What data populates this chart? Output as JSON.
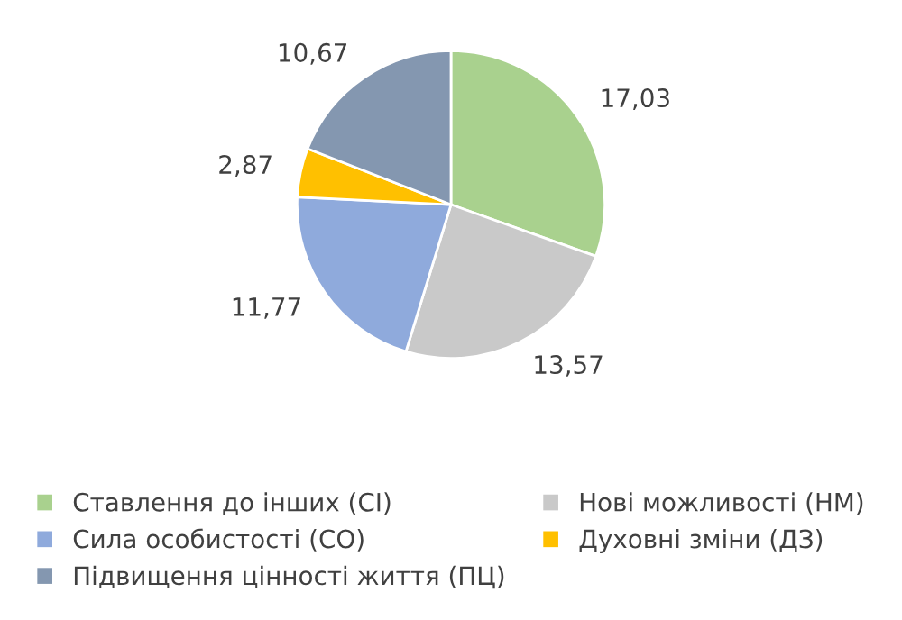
{
  "chart_data": {
    "type": "pie",
    "categories": [
      "Ставлення до інших (СІ)",
      "Нові можливості (НМ)",
      "Сила особистості (СО)",
      "Духовні зміни (ДЗ)",
      "Підвищення цінності життя (ПЦ)"
    ],
    "values": [
      17.03,
      13.57,
      11.77,
      2.87,
      10.67
    ],
    "value_labels": [
      "17,03",
      "13,57",
      "11,77",
      "2,87",
      "10,67"
    ],
    "colors": [
      "#a9d18e",
      "#c9c9c9",
      "#8faadc",
      "#ffc000",
      "#8497b0"
    ],
    "legend": "bottom"
  }
}
